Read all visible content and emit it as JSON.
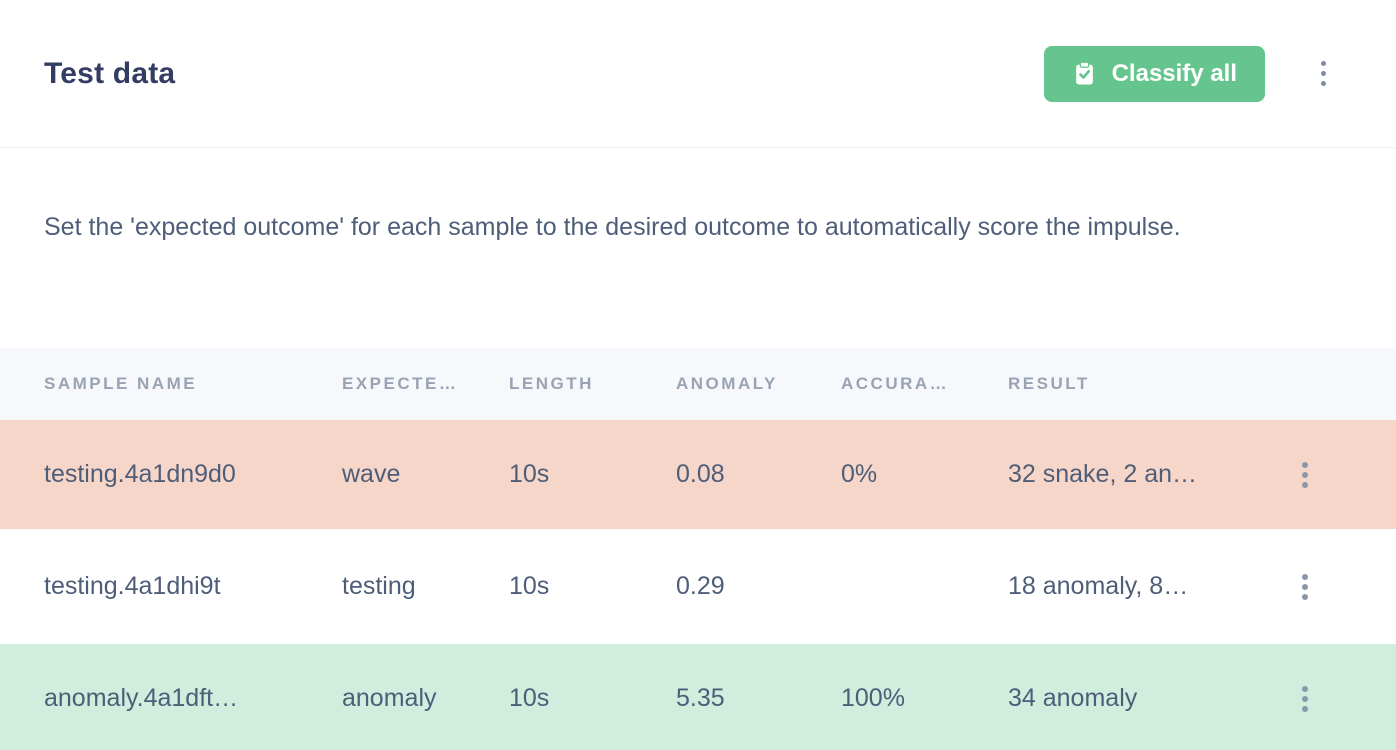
{
  "page": {
    "title": "Test data",
    "description": "Set the 'expected outcome' for each sample to the desired outcome to automatically score the impulse."
  },
  "toolbar": {
    "classify_all_label": "Classify all",
    "classify_all_icon": "clipboard-check-icon",
    "page_menu_icon": "kebab-menu-icon"
  },
  "table": {
    "columns": [
      {
        "key": "sample_name",
        "label": "SAMPLE NAME"
      },
      {
        "key": "expected",
        "label": "EXPECTE…"
      },
      {
        "key": "length",
        "label": "LENGTH"
      },
      {
        "key": "anomaly",
        "label": "ANOMALY"
      },
      {
        "key": "accuracy",
        "label": "ACCURA…"
      },
      {
        "key": "result",
        "label": "RESULT"
      }
    ],
    "rows": [
      {
        "sample_name": "testing.4a1dn9d0",
        "expected": "wave",
        "length": "10s",
        "anomaly": "0.08",
        "accuracy": "0%",
        "result": "32 snake, 2 an…",
        "status": "incorrect"
      },
      {
        "sample_name": "testing.4a1dhi9t",
        "expected": "testing",
        "length": "10s",
        "anomaly": "0.29",
        "accuracy": "",
        "result": "18 anomaly, 8…",
        "status": "neutral"
      },
      {
        "sample_name": "anomaly.4a1dft…",
        "expected": "anomaly",
        "length": "10s",
        "anomaly": "5.35",
        "accuracy": "100%",
        "result": "34 anomaly",
        "status": "correct"
      }
    ]
  },
  "colors": {
    "accent_green": "#66c58e",
    "row_incorrect_bg": "#f7d6ca",
    "row_correct_bg": "#cfeedd",
    "header_bg": "#f7f8fb",
    "title_color": "#333c63",
    "body_text": "#4e5d78",
    "muted_text": "#99a3b4"
  }
}
